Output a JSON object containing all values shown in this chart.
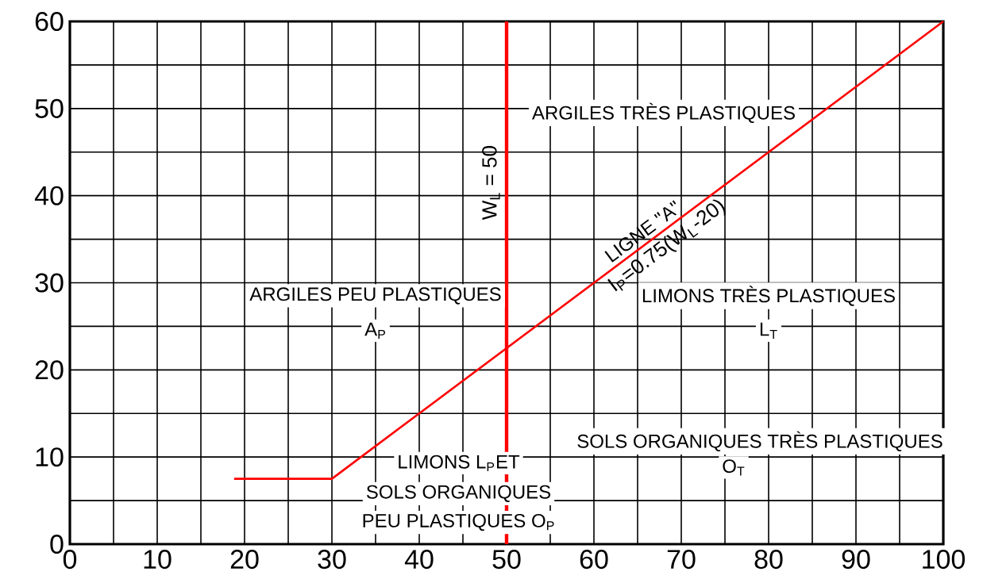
{
  "chart_data": {
    "type": "line",
    "xlim": [
      0,
      100
    ],
    "ylim": [
      0,
      60
    ],
    "xticks": [
      0,
      10,
      20,
      30,
      40,
      50,
      60,
      70,
      80,
      90,
      100
    ],
    "yticks": [
      0,
      10,
      20,
      30,
      40,
      50,
      60
    ],
    "grid": true,
    "marker": "none",
    "line_style": "solid",
    "series": [
      {
        "name": "LIGNE \"A\"",
        "color": "#ff0000",
        "x": [
          18.8,
          30,
          100
        ],
        "values": [
          7.5,
          7.5,
          60
        ]
      }
    ],
    "ref_lines": [
      {
        "axis": "x",
        "value": 50,
        "label": "W$_{L}$ = 50",
        "color": "#ff0000"
      }
    ],
    "annotations": [
      "I$_{P}$=0.75(W$_{L}$-20)",
      "ARGILES TRÈS PLASTIQUES",
      "ARGILES PEU PLASTIQUES",
      "A$_{P}$",
      "LIMONS TRÈS PLASTIQUES",
      "L$_{T}$",
      "SOLS ORGANIQUES TRÈS PLASTIQUES",
      "O$_{T}$",
      "LIMONS L$_{P}$ET",
      "SOLS ORGANIQUES",
      "PEU PLASTIQUES O$_{P}$"
    ]
  }
}
